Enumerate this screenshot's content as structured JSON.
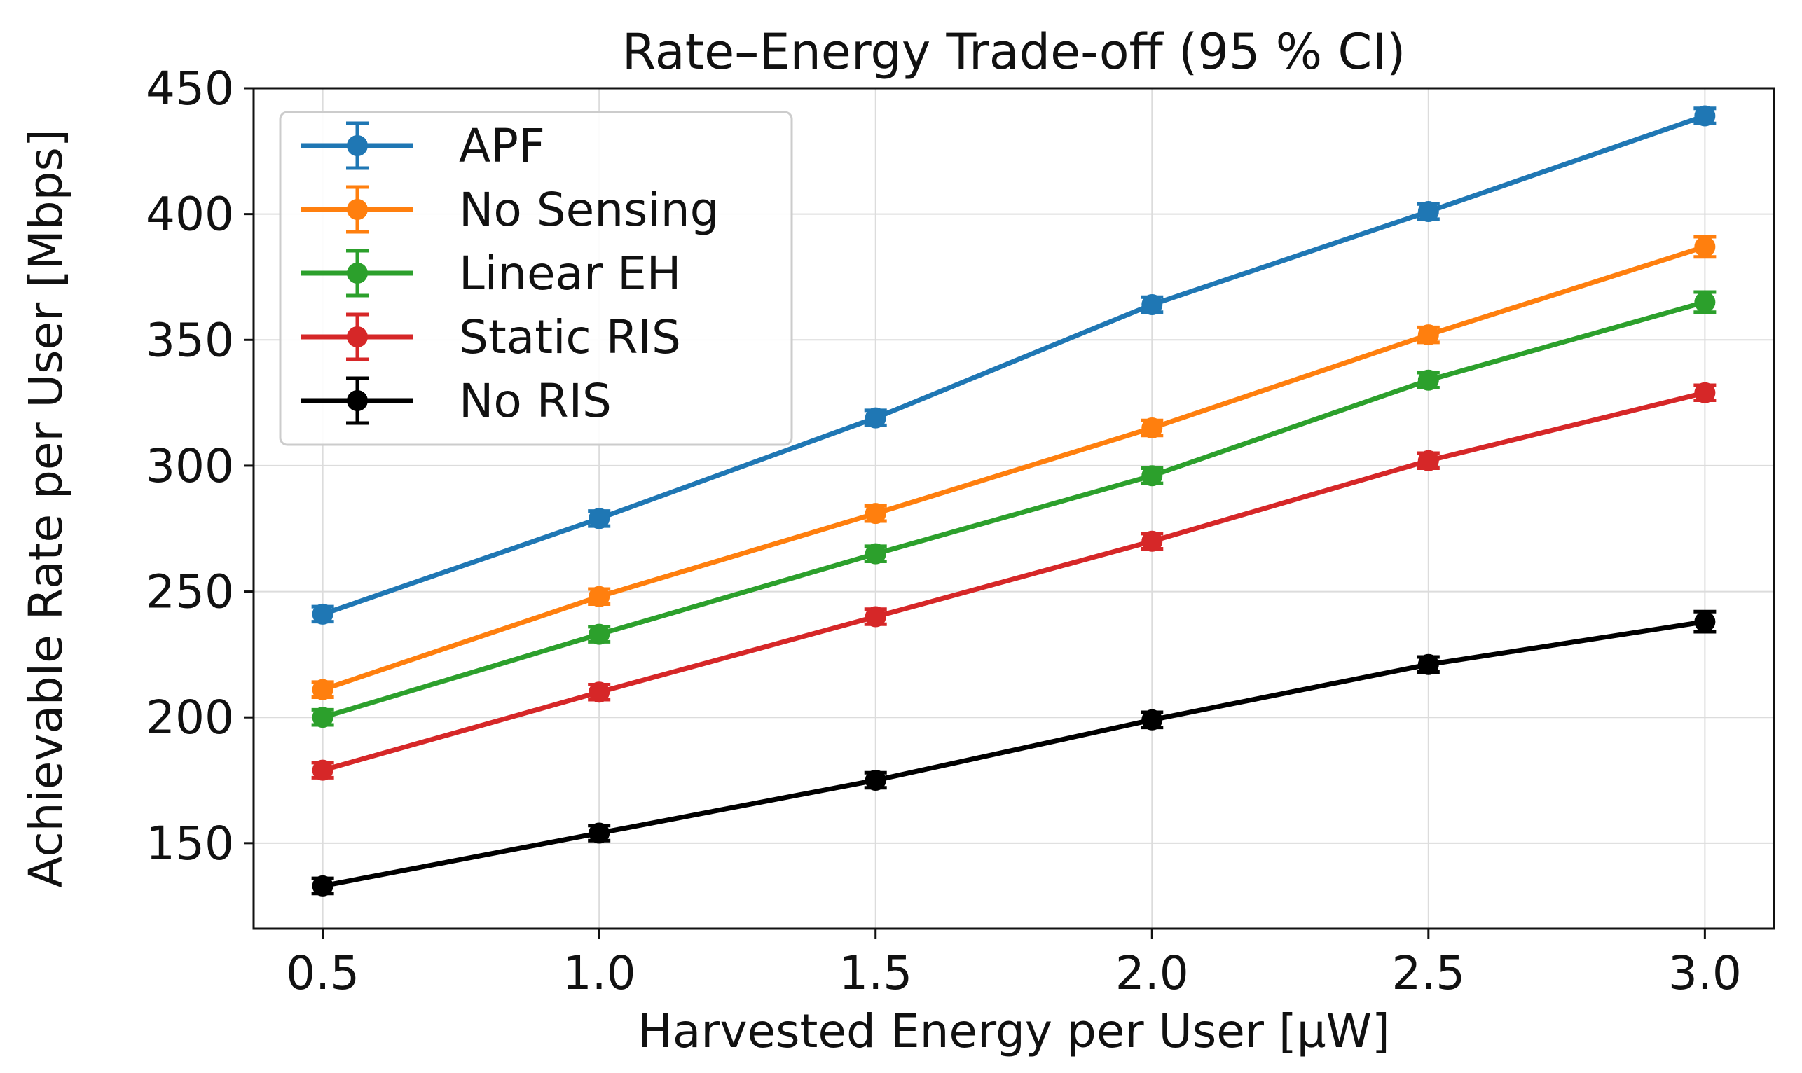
{
  "chart_data": {
    "type": "line",
    "title": "Rate–Energy Trade-off (95 % CI)",
    "xlabel": "Harvested Energy per User [µW]",
    "ylabel": "Achievable Rate per User [Mbps]",
    "x": [
      0.5,
      1.0,
      1.5,
      2.0,
      2.5,
      3.0
    ],
    "x_tick_labels": [
      "0.5",
      "1.0",
      "1.5",
      "2.0",
      "2.5",
      "3.0"
    ],
    "y_ticks": [
      150,
      200,
      250,
      300,
      350,
      400,
      450
    ],
    "y_tick_labels": [
      "150",
      "200",
      "250",
      "300",
      "350",
      "400",
      "450"
    ],
    "xlim": [
      0.375,
      3.125
    ],
    "ylim": [
      116,
      450
    ],
    "grid": true,
    "legend_position": "upper-left",
    "series": [
      {
        "name": "APF",
        "color": "#1f77b4",
        "values": [
          241,
          279,
          319,
          364,
          401,
          439
        ],
        "ci": [
          3,
          3,
          3,
          3,
          3,
          3
        ]
      },
      {
        "name": "No Sensing",
        "color": "#ff7f0e",
        "values": [
          211,
          248,
          281,
          315,
          352,
          387
        ],
        "ci": [
          3,
          3,
          3,
          3,
          3,
          4
        ]
      },
      {
        "name": "Linear EH",
        "color": "#2ca02c",
        "values": [
          200,
          233,
          265,
          296,
          334,
          365
        ],
        "ci": [
          3,
          3,
          3,
          3,
          3,
          4
        ]
      },
      {
        "name": "Static RIS",
        "color": "#d62728",
        "values": [
          179,
          210,
          240,
          270,
          302,
          329
        ],
        "ci": [
          3,
          3,
          3,
          3,
          3,
          3
        ]
      },
      {
        "name": "No RIS",
        "color": "#000000",
        "values": [
          133,
          154,
          175,
          199,
          221,
          238
        ],
        "ci": [
          3,
          3,
          3,
          3,
          3,
          4
        ]
      }
    ]
  }
}
